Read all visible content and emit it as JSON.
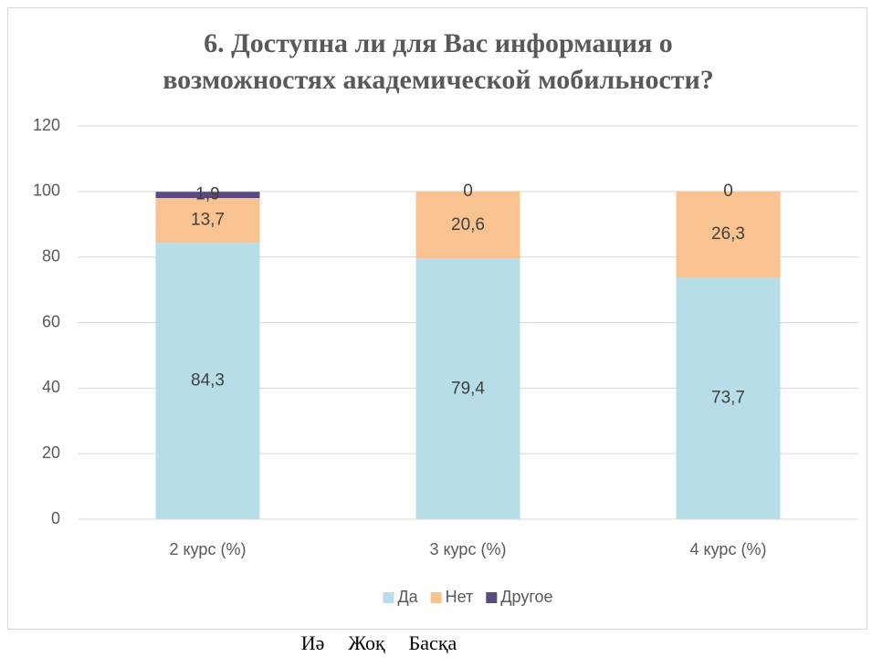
{
  "chart_data": {
    "type": "stacked_bar",
    "title": [
      "6. Доступна  ли для Вас информация  о",
      "возможностях академической  мобильности?"
    ],
    "categories": [
      "2 курс (%)",
      "3 курс (%)",
      "4 курс (%)"
    ],
    "series": [
      {
        "name": "Да",
        "color": "#b7dde8",
        "values": [
          84.3,
          79.4,
          73.7
        ],
        "value_labels": [
          "84,3",
          "79,4",
          "73,7"
        ]
      },
      {
        "name": "Нет",
        "color": "#f8c390",
        "values": [
          13.7,
          20.6,
          26.3
        ],
        "value_labels": [
          "13,7",
          "20,6",
          "26,3"
        ]
      },
      {
        "name": "Другое",
        "color": "#5b4a7e",
        "values": [
          1.9,
          0,
          0
        ],
        "value_labels": [
          "1,9",
          "0",
          "0"
        ]
      }
    ],
    "ylim": [
      0,
      120
    ],
    "yticks": [
      0,
      20,
      40,
      60,
      80,
      100,
      120
    ],
    "grid": true,
    "legend": "bottom"
  },
  "caption": [
    "Иә",
    "Жоқ",
    "Басқа"
  ]
}
